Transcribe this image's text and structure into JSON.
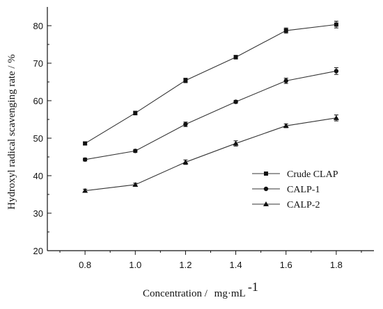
{
  "chart_data": {
    "type": "line",
    "title": "",
    "xlabel": "Concentration /",
    "xlabel_unit_main": "mg·mL",
    "xlabel_unit_sup": "-1",
    "ylabel": "Hydroxyl radical scavenging rate / %",
    "x": [
      0.8,
      1.0,
      1.2,
      1.4,
      1.6,
      1.8
    ],
    "xlim": [
      0.65,
      1.95
    ],
    "ylim": [
      20,
      85
    ],
    "x_ticks": [
      0.8,
      1.0,
      1.2,
      1.4,
      1.6,
      1.8
    ],
    "x_tick_labels": [
      "0.8",
      "1.0",
      "1.2",
      "1.4",
      "1.6",
      "1.8"
    ],
    "y_ticks": [
      20,
      30,
      40,
      50,
      60,
      70,
      80
    ],
    "y_tick_labels": [
      "20",
      "30",
      "40",
      "50",
      "60",
      "70",
      "80"
    ],
    "grid": false,
    "legend_position": "right-lower",
    "series": [
      {
        "name": "Crude CLAP",
        "marker": "square",
        "values": [
          48.6,
          56.7,
          65.4,
          71.6,
          78.7,
          80.3
        ],
        "errors": [
          0.4,
          0.5,
          0.6,
          0.5,
          0.7,
          0.9
        ]
      },
      {
        "name": "CALP-1",
        "marker": "circle",
        "values": [
          44.3,
          46.6,
          53.7,
          59.7,
          65.3,
          67.9
        ],
        "errors": [
          0.4,
          0.4,
          0.6,
          0.4,
          0.7,
          0.9
        ]
      },
      {
        "name": "CALP-2",
        "marker": "triangle",
        "values": [
          36.0,
          37.6,
          43.6,
          48.6,
          53.3,
          55.4
        ],
        "errors": [
          0.4,
          0.4,
          0.6,
          0.7,
          0.5,
          0.8
        ]
      }
    ]
  },
  "colors": {
    "line": "#333333",
    "marker": "#111111",
    "axis": "#111111"
  }
}
